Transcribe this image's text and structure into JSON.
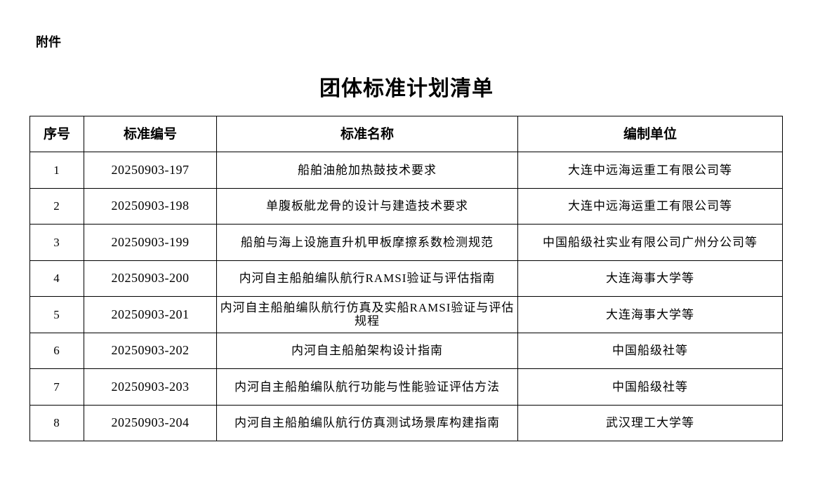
{
  "attachment_label": "附件",
  "title": "团体标准计划清单",
  "table": {
    "headers": [
      "序号",
      "标准编号",
      "标准名称",
      "编制单位"
    ],
    "rows": [
      {
        "no": "1",
        "code": "20250903-197",
        "name": "船舶油舱加热鼓技术要求",
        "org": "大连中远海运重工有限公司等"
      },
      {
        "no": "2",
        "code": "20250903-198",
        "name": "单腹板舭龙骨的设计与建造技术要求",
        "org": "大连中远海运重工有限公司等"
      },
      {
        "no": "3",
        "code": "20250903-199",
        "name": "船舶与海上设施直升机甲板摩擦系数检测规范",
        "org": "中国船级社实业有限公司广州分公司等"
      },
      {
        "no": "4",
        "code": "20250903-200",
        "name": "内河自主船舶编队航行RAMSI验证与评估指南",
        "org": "大连海事大学等"
      },
      {
        "no": "5",
        "code": "20250903-201",
        "name": "内河自主船舶编队航行仿真及实船RAMSI验证与评估规程",
        "org": "大连海事大学等"
      },
      {
        "no": "6",
        "code": "20250903-202",
        "name": "内河自主船舶架构设计指南",
        "org": "中国船级社等"
      },
      {
        "no": "7",
        "code": "20250903-203",
        "name": "内河自主船舶编队航行功能与性能验证评估方法",
        "org": "中国船级社等"
      },
      {
        "no": "8",
        "code": "20250903-204",
        "name": "内河自主船舶编队航行仿真测试场景库构建指南",
        "org": "武汉理工大学等"
      }
    ]
  }
}
